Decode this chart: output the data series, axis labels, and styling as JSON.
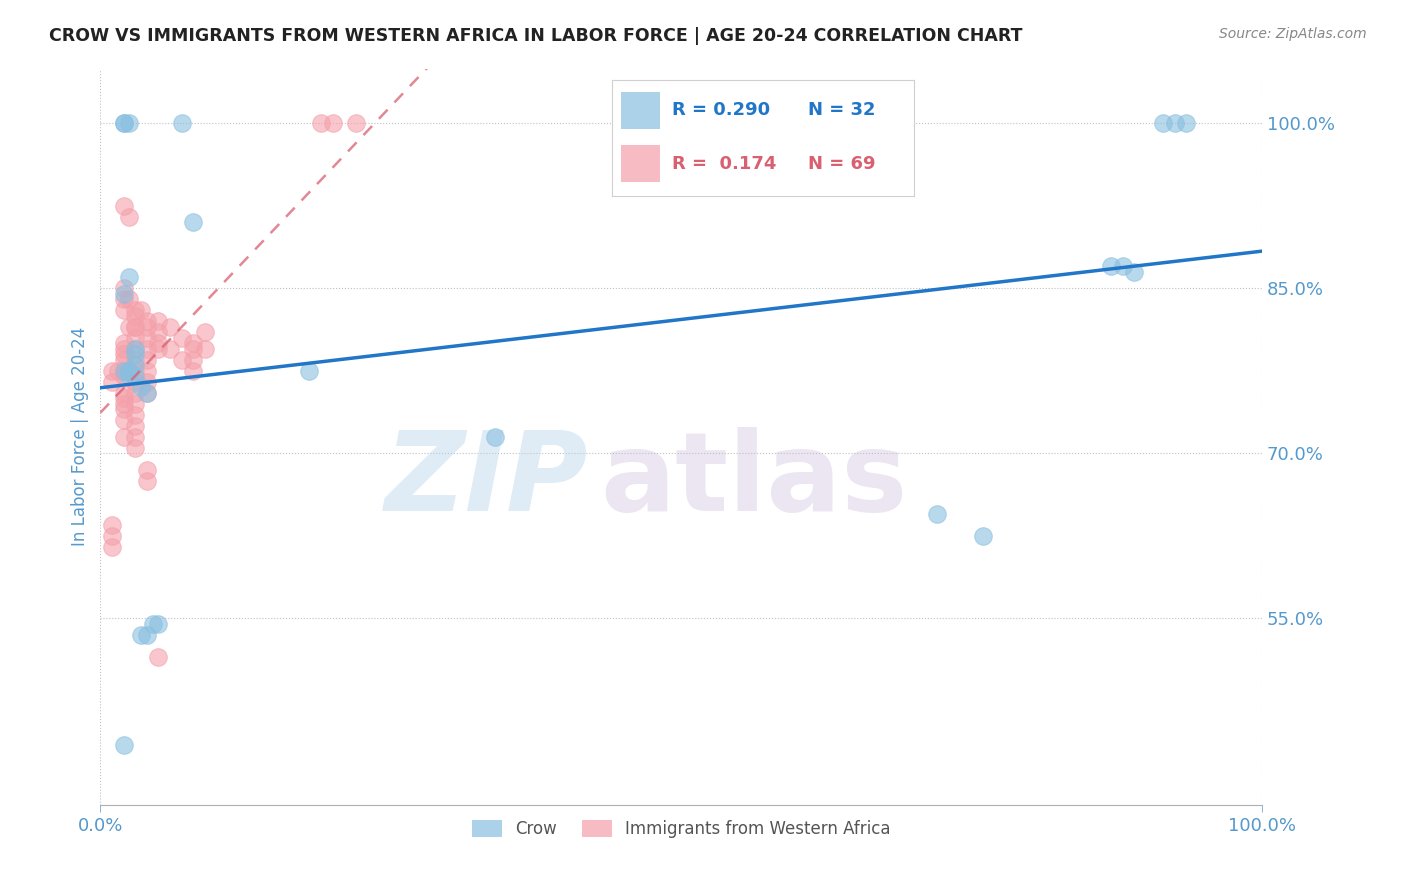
{
  "title": "CROW VS IMMIGRANTS FROM WESTERN AFRICA IN LABOR FORCE | AGE 20-24 CORRELATION CHART",
  "source": "Source: ZipAtlas.com",
  "ylabel": "In Labor Force | Age 20-24",
  "xlim": [
    0.0,
    1.0
  ],
  "ylim": [
    0.38,
    1.05
  ],
  "y_tick_positions": [
    0.55,
    0.7,
    0.85,
    1.0
  ],
  "watermark": "ZIPatlas",
  "crow_color": "#89bfe0",
  "imm_color": "#f4a0aa",
  "crow_line_color": "#2176c7",
  "imm_line_color": "#d96070",
  "background_color": "#ffffff",
  "crow_points_x": [
    0.02,
    0.035,
    0.04,
    0.045,
    0.05,
    0.02,
    0.025,
    0.03,
    0.03,
    0.03,
    0.025,
    0.03,
    0.025,
    0.02,
    0.025,
    0.035,
    0.04,
    0.18,
    0.34,
    0.72,
    0.76,
    0.87,
    0.88,
    0.89,
    0.915,
    0.925,
    0.935,
    0.02,
    0.02,
    0.025,
    0.07,
    0.08
  ],
  "crow_points_y": [
    0.435,
    0.535,
    0.535,
    0.545,
    0.545,
    0.845,
    0.86,
    0.79,
    0.795,
    0.78,
    0.77,
    0.77,
    0.775,
    0.775,
    0.775,
    0.76,
    0.755,
    0.775,
    0.715,
    0.645,
    0.625,
    0.87,
    0.87,
    0.865,
    1.0,
    1.0,
    1.0,
    1.0,
    1.0,
    1.0,
    1.0,
    0.91
  ],
  "imm_points_x": [
    0.01,
    0.015,
    0.01,
    0.02,
    0.02,
    0.02,
    0.025,
    0.02,
    0.02,
    0.02,
    0.02,
    0.02,
    0.02,
    0.02,
    0.02,
    0.02,
    0.02,
    0.02,
    0.02,
    0.025,
    0.03,
    0.03,
    0.03,
    0.03,
    0.03,
    0.03,
    0.03,
    0.03,
    0.03,
    0.03,
    0.03,
    0.03,
    0.03,
    0.03,
    0.03,
    0.035,
    0.04,
    0.04,
    0.04,
    0.04,
    0.04,
    0.04,
    0.04,
    0.04,
    0.04,
    0.04,
    0.05,
    0.05,
    0.05,
    0.05,
    0.05,
    0.06,
    0.06,
    0.07,
    0.07,
    0.08,
    0.08,
    0.08,
    0.08,
    0.09,
    0.09,
    0.19,
    0.2,
    0.22,
    0.01,
    0.01,
    0.01,
    0.02,
    0.025
  ],
  "imm_points_y": [
    0.775,
    0.775,
    0.765,
    0.85,
    0.84,
    0.83,
    0.815,
    0.8,
    0.795,
    0.79,
    0.785,
    0.775,
    0.77,
    0.755,
    0.75,
    0.745,
    0.74,
    0.73,
    0.715,
    0.84,
    0.83,
    0.825,
    0.815,
    0.815,
    0.805,
    0.795,
    0.785,
    0.775,
    0.765,
    0.755,
    0.745,
    0.735,
    0.725,
    0.715,
    0.705,
    0.83,
    0.82,
    0.815,
    0.805,
    0.795,
    0.785,
    0.775,
    0.765,
    0.755,
    0.685,
    0.675,
    0.82,
    0.81,
    0.8,
    0.795,
    0.515,
    0.815,
    0.795,
    0.805,
    0.785,
    0.8,
    0.795,
    0.785,
    0.775,
    0.81,
    0.795,
    1.0,
    1.0,
    1.0,
    0.635,
    0.625,
    0.615,
    0.925,
    0.915
  ]
}
